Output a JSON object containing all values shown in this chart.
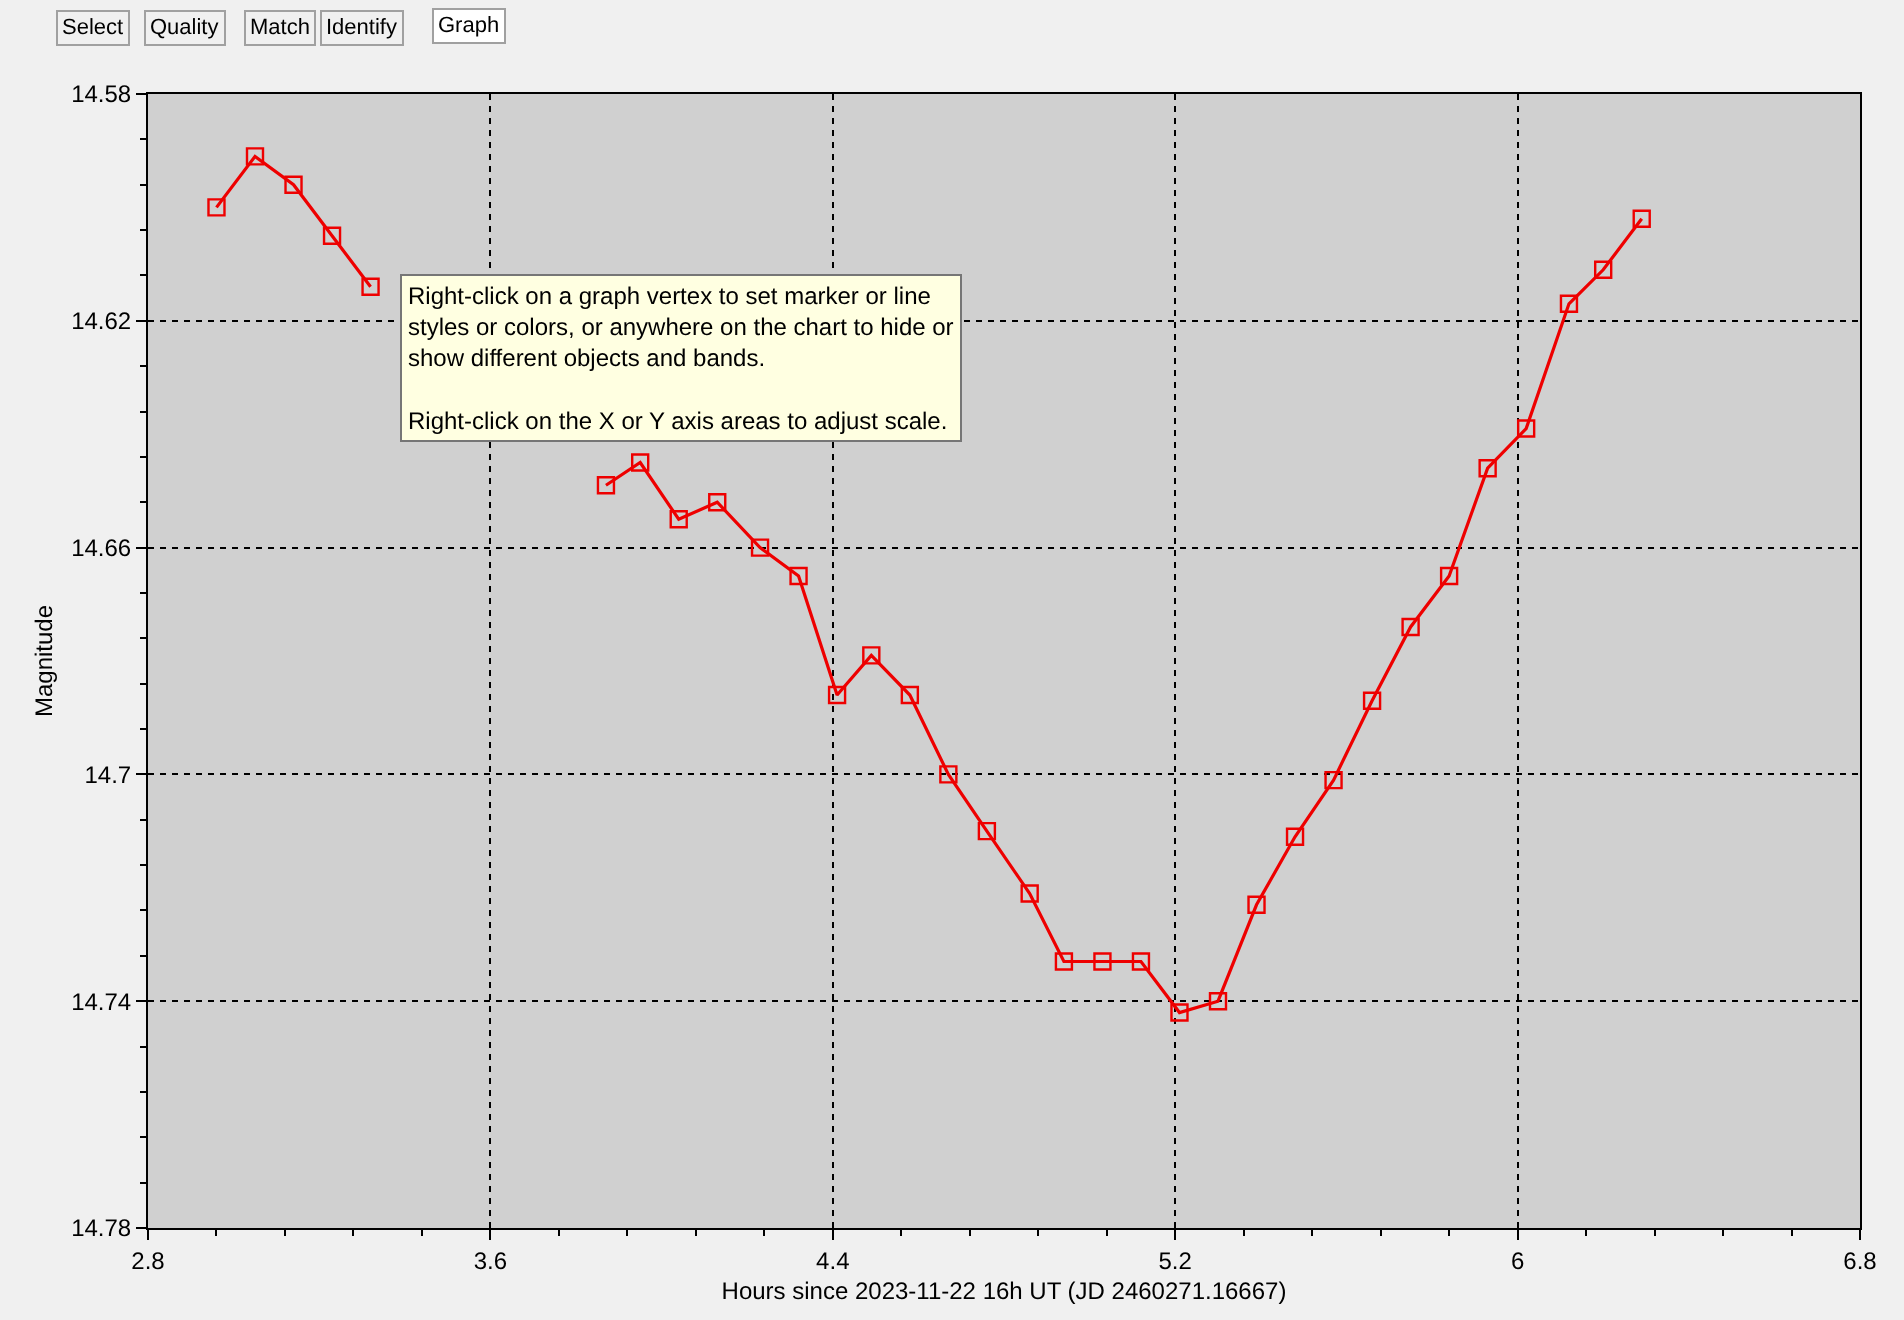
{
  "chart_data": {
    "type": "line",
    "xlabel": "Hours since 2023-11-22 16h UT (JD 2460271.16667)",
    "ylabel": "Magnitude",
    "annotations": [
      "Select",
      "Quality",
      "Match",
      "Identify",
      "Graph",
      "Right-click on a graph vertex to set marker or line\nstyles or colors, or anywhere on the chart to hide or\nshow different objects and bands.\n\nRight-click on the X or Y axis areas to adjust scale."
    ],
    "x": [
      2.96,
      3.05,
      3.14,
      3.23,
      3.32,
      3.59,
      3.87,
      3.95,
      4.04,
      4.13,
      4.23,
      4.32,
      4.41,
      4.49,
      4.58,
      4.67,
      4.76,
      4.86,
      4.94,
      5.03,
      5.12,
      5.21,
      5.3,
      5.39,
      5.48,
      5.57,
      5.66,
      5.75,
      5.84,
      5.93,
      6.02,
      6.12,
      6.2,
      6.29
    ],
    "series": [
      {
        "color": "#ee0000",
        "values": [
          14.6,
          14.591,
          14.596,
          14.605,
          14.614,
          null,
          14.649,
          14.645,
          14.655,
          14.652,
          14.66,
          14.665,
          14.686,
          14.679,
          14.686,
          14.7,
          14.71,
          14.721,
          14.733,
          14.733,
          14.733,
          14.742,
          14.74,
          14.723,
          14.711,
          14.701,
          14.687,
          14.674,
          14.665,
          14.646,
          14.639,
          14.617,
          14.611,
          14.602
        ]
      }
    ],
    "xlim": [
      2.8,
      6.8
    ],
    "xticks": [
      2.8,
      {
        "value": 2.96,
        "label": null
      },
      {
        "value": 3.12,
        "label": null
      },
      {
        "value": 3.28,
        "label": null
      },
      {
        "value": 3.44,
        "label": null
      },
      3.6,
      {
        "value": 3.76,
        "label": null
      },
      {
        "value": 3.92,
        "label": null
      },
      {
        "value": 4.08,
        "label": null
      },
      {
        "value": 4.24,
        "label": null
      },
      4.4,
      {
        "value": 4.56,
        "label": null
      },
      {
        "value": 4.72,
        "label": null
      },
      {
        "value": 4.88,
        "label": null
      },
      {
        "value": 5.04,
        "label": null
      },
      5.2,
      {
        "value": 5.36,
        "label": null
      },
      {
        "value": 5.52,
        "label": null
      },
      {
        "value": 5.68,
        "label": null
      },
      {
        "value": 5.84,
        "label": null
      },
      6,
      {
        "value": 6.16,
        "label": null
      },
      {
        "value": 6.32,
        "label": null
      },
      {
        "value": 6.48,
        "label": null
      },
      {
        "value": 6.64,
        "label": null
      },
      6.8
    ],
    "ylim": [
      14.78,
      14.58
    ],
    "yticks": [
      14.58,
      {
        "value": 14.588,
        "label": null
      },
      {
        "value": 14.596,
        "label": null
      },
      {
        "value": 14.604,
        "label": null
      },
      {
        "value": 14.612,
        "label": null
      },
      14.62,
      {
        "value": 14.628,
        "label": null
      },
      {
        "value": 14.636,
        "label": null
      },
      {
        "value": 14.644,
        "label": null
      },
      {
        "value": 14.652,
        "label": null
      },
      14.66,
      {
        "value": 14.668,
        "label": null
      },
      {
        "value": 14.676,
        "label": null
      },
      {
        "value": 14.684,
        "label": null
      },
      {
        "value": 14.692,
        "label": null
      },
      14.7,
      {
        "value": 14.708,
        "label": null
      },
      {
        "value": 14.716,
        "label": null
      },
      {
        "value": 14.724,
        "label": null
      },
      {
        "value": 14.732,
        "label": null
      },
      14.74,
      {
        "value": 14.748,
        "label": null
      },
      {
        "value": 14.756,
        "label": null
      },
      {
        "value": 14.764,
        "label": null
      },
      {
        "value": 14.772,
        "label": null
      },
      14.78
    ],
    "grid": true,
    "marker": "square",
    "line_style": "solid"
  }
}
